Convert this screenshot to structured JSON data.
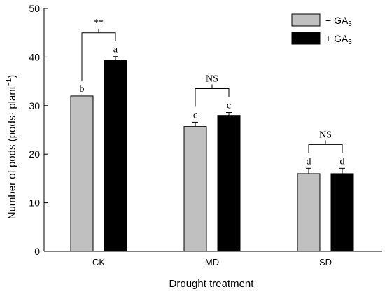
{
  "chart_data": {
    "type": "bar",
    "xlabel": "Drought treatment",
    "ylabel": "Number of pods (pods· plant",
    "ylabel_sup": "−1",
    "ylabel_close": ")",
    "ylim": [
      0,
      50
    ],
    "yticks": [
      0,
      10,
      20,
      30,
      40,
      50
    ],
    "categories": [
      "CK",
      "MD",
      "SD"
    ],
    "series": [
      {
        "name": "− GA",
        "sub": "3",
        "color": "#c0c0c0",
        "values": [
          32.0,
          25.7,
          16.0
        ],
        "errors": [
          0,
          0.9,
          1.1
        ],
        "letters": [
          "b",
          "c",
          "d"
        ]
      },
      {
        "name": "+ GA",
        "sub": "3",
        "color": "#000000",
        "values": [
          39.3,
          28.0,
          16.0
        ],
        "errors": [
          0.8,
          0.6,
          1.1
        ],
        "letters": [
          "a",
          "c",
          "d"
        ]
      }
    ],
    "significance": [
      "**",
      "NS",
      "NS"
    ],
    "legend_position": "top-right"
  }
}
